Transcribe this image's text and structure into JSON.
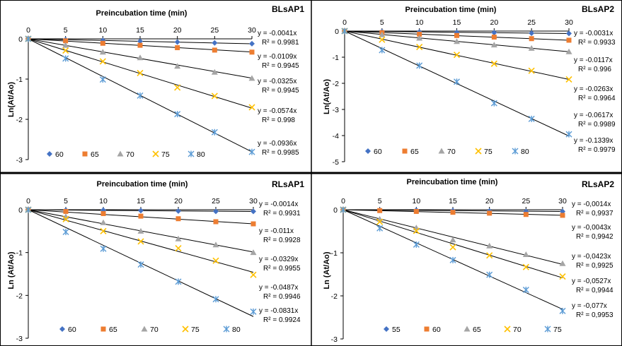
{
  "colors": {
    "series": [
      "#4472C4",
      "#ED7D31",
      "#A5A5A5",
      "#FFC000",
      "#5B9BD5"
    ],
    "trendline": "#000000",
    "axis": "#000000",
    "divider": "#000000"
  },
  "chart_data": [
    {
      "type": "scatter",
      "title": "Preincubation time (min)",
      "panel_label": "BLsAP1",
      "xlabel": "Preincubation time (min)",
      "ylabel": "Ln(At/Ao)",
      "xlim": [
        0,
        30
      ],
      "ylim": [
        -3,
        0
      ],
      "x_ticks": [
        0,
        5,
        10,
        15,
        20,
        25,
        30
      ],
      "y_ticks": [
        0,
        -1,
        -2,
        -3
      ],
      "x": [
        0,
        5,
        10,
        15,
        20,
        25,
        30
      ],
      "legend_position": "bottom",
      "series": [
        {
          "name": "60",
          "marker": "diamond",
          "slope": -0.0041,
          "values": [
            0,
            -0.02,
            -0.04,
            -0.06,
            -0.08,
            -0.1,
            -0.12
          ],
          "equation": "y = -0.0041x",
          "r2": "R² = 0.9981"
        },
        {
          "name": "65",
          "marker": "square",
          "slope": -0.0109,
          "values": [
            0,
            -0.05,
            -0.11,
            -0.16,
            -0.22,
            -0.28,
            -0.33
          ],
          "equation": "y = -0.0109x",
          "r2": "R² = 0.9945"
        },
        {
          "name": "70",
          "marker": "triangle",
          "slope": -0.0325,
          "values": [
            0,
            -0.16,
            -0.33,
            -0.47,
            -0.68,
            -0.83,
            -0.98
          ],
          "equation": "y = -0.0325x",
          "r2": "R² = 0.9945"
        },
        {
          "name": "75",
          "marker": "x",
          "slope": -0.0574,
          "values": [
            0,
            -0.29,
            -0.56,
            -0.85,
            -1.21,
            -1.42,
            -1.7
          ],
          "equation": "y = -0.0574x",
          "r2": "R² = 0.998"
        },
        {
          "name": "80",
          "marker": "star",
          "slope": -0.0936,
          "values": [
            0,
            -0.49,
            -1.01,
            -1.41,
            -1.87,
            -2.32,
            -2.81
          ],
          "equation": "y = -0.0936x",
          "r2": "R² = 0.9985"
        }
      ]
    },
    {
      "type": "scatter",
      "title": "Preincubation time (min)",
      "panel_label": "BLsAP2",
      "xlabel": "Preincubation time (min)",
      "ylabel": "Ln(At/Ao)",
      "xlim": [
        0,
        30
      ],
      "ylim": [
        -5,
        0
      ],
      "x_ticks": [
        0,
        5,
        10,
        15,
        20,
        25,
        30
      ],
      "y_ticks": [
        0,
        -1,
        -2,
        -3,
        -4,
        -5
      ],
      "x": [
        0,
        5,
        10,
        15,
        20,
        25,
        30
      ],
      "legend_position": "bottom",
      "series": [
        {
          "name": "60",
          "marker": "diamond",
          "slope": -0.0031,
          "values": [
            0,
            -0.02,
            -0.03,
            -0.05,
            -0.06,
            -0.08,
            -0.09
          ],
          "equation": "y = -0.0031x",
          "r2": "R² = 0.9933"
        },
        {
          "name": "65",
          "marker": "square",
          "slope": -0.0117,
          "values": [
            0,
            -0.06,
            -0.12,
            -0.17,
            -0.23,
            -0.29,
            -0.35
          ],
          "equation": "y = -0.0117x",
          "r2": "R² = 0.996"
        },
        {
          "name": "70",
          "marker": "triangle",
          "slope": -0.0263,
          "values": [
            0,
            -0.14,
            -0.27,
            -0.4,
            -0.53,
            -0.66,
            -0.79
          ],
          "equation": "y = -0.0263x",
          "r2": "R² = 0.9964"
        },
        {
          "name": "75",
          "marker": "x",
          "slope": -0.0617,
          "values": [
            0,
            -0.33,
            -0.61,
            -0.91,
            -1.25,
            -1.52,
            -1.85
          ],
          "equation": "y = -0.0617x",
          "r2": "R² = 0.9989"
        },
        {
          "name": "80",
          "marker": "star",
          "slope": -0.1339,
          "values": [
            0,
            -0.73,
            -1.32,
            -1.94,
            -2.76,
            -3.36,
            -3.95
          ],
          "equation": "y = -0.1339x",
          "r2": "R² = 0.9979"
        }
      ]
    },
    {
      "type": "scatter",
      "title": "Preincubation time (min)",
      "panel_label": "RLsAP1",
      "xlabel": "Preincubation time (min)",
      "ylabel": "Ln (At/Ao)",
      "xlim": [
        0,
        30
      ],
      "ylim": [
        -3,
        0
      ],
      "x_ticks": [
        0,
        5,
        10,
        15,
        20,
        25,
        30
      ],
      "y_ticks": [
        0,
        -1,
        -2,
        -3
      ],
      "x": [
        0,
        5,
        10,
        15,
        20,
        25,
        30
      ],
      "legend_position": "bottom",
      "series": [
        {
          "name": "60",
          "marker": "diamond",
          "slope": -0.0014,
          "values": [
            0,
            -0.01,
            -0.01,
            -0.02,
            -0.03,
            -0.04,
            -0.04
          ],
          "equation": "y = -0.0014x",
          "r2": "R² = 0.9931"
        },
        {
          "name": "65",
          "marker": "square",
          "slope": -0.011,
          "values": [
            0,
            -0.04,
            -0.09,
            -0.15,
            -0.21,
            -0.28,
            -0.33
          ],
          "equation": "y = -0.011x",
          "r2": "R² = 0.9928"
        },
        {
          "name": "70",
          "marker": "triangle",
          "slope": -0.0329,
          "values": [
            0,
            -0.16,
            -0.3,
            -0.5,
            -0.68,
            -0.82,
            -1.0
          ],
          "equation": "y = -0.0329x",
          "r2": "R² = 0.9955"
        },
        {
          "name": "75",
          "marker": "x",
          "slope": -0.0487,
          "values": [
            0,
            -0.22,
            -0.5,
            -0.74,
            -0.9,
            -1.19,
            -1.52
          ],
          "equation": "y = -0.0487x",
          "r2": "R² = 0.9946"
        },
        {
          "name": "80",
          "marker": "star",
          "slope": -0.0831,
          "values": [
            0,
            -0.52,
            -0.91,
            -1.28,
            -1.68,
            -2.09,
            -2.38
          ],
          "equation": "y = -0.0831x",
          "r2": "R² = 0.9924"
        }
      ]
    },
    {
      "type": "scatter",
      "title": "Preincubation time (min)",
      "panel_label": "RLsAP2",
      "xlabel": "Preincubation time (min)",
      "ylabel": "Ln (At/Ao)",
      "xlim": [
        0,
        30
      ],
      "ylim": [
        -3,
        0
      ],
      "x_ticks": [
        0,
        5,
        10,
        15,
        20,
        25,
        30
      ],
      "y_ticks": [
        0,
        -1,
        -2,
        -3
      ],
      "x": [
        0,
        5,
        10,
        15,
        20,
        25,
        30
      ],
      "legend_position": "bottom",
      "series": [
        {
          "name": "55",
          "marker": "diamond",
          "slope": -0.0014,
          "values": [
            0,
            -0.01,
            -0.01,
            -0.02,
            -0.03,
            -0.04,
            -0.04
          ],
          "equation": "y = -0,0014x",
          "r2": "R² = 0,9937"
        },
        {
          "name": "60",
          "marker": "square",
          "slope": -0.0043,
          "values": [
            0,
            -0.02,
            -0.04,
            -0.06,
            -0.08,
            -0.11,
            -0.13
          ],
          "equation": "y = -0,0043x",
          "r2": "R² = 0,9942"
        },
        {
          "name": "65",
          "marker": "triangle",
          "slope": -0.0423,
          "values": [
            0,
            -0.22,
            -0.42,
            -0.7,
            -0.84,
            -1.04,
            -1.25
          ],
          "equation": "y = -0,0423x",
          "r2": "R² = 0,9925"
        },
        {
          "name": "70",
          "marker": "x",
          "slope": -0.0527,
          "values": [
            0,
            -0.28,
            -0.49,
            -0.87,
            -1.06,
            -1.33,
            -1.55
          ],
          "equation": "y = -0,0527x",
          "r2": "R² = 0,9944"
        },
        {
          "name": "75",
          "marker": "star",
          "slope": -0.077,
          "values": [
            0,
            -0.43,
            -0.81,
            -1.17,
            -1.51,
            -1.86,
            -2.35
          ],
          "equation": "y = -0,077x",
          "r2": "R² = 0,9953"
        }
      ]
    }
  ]
}
